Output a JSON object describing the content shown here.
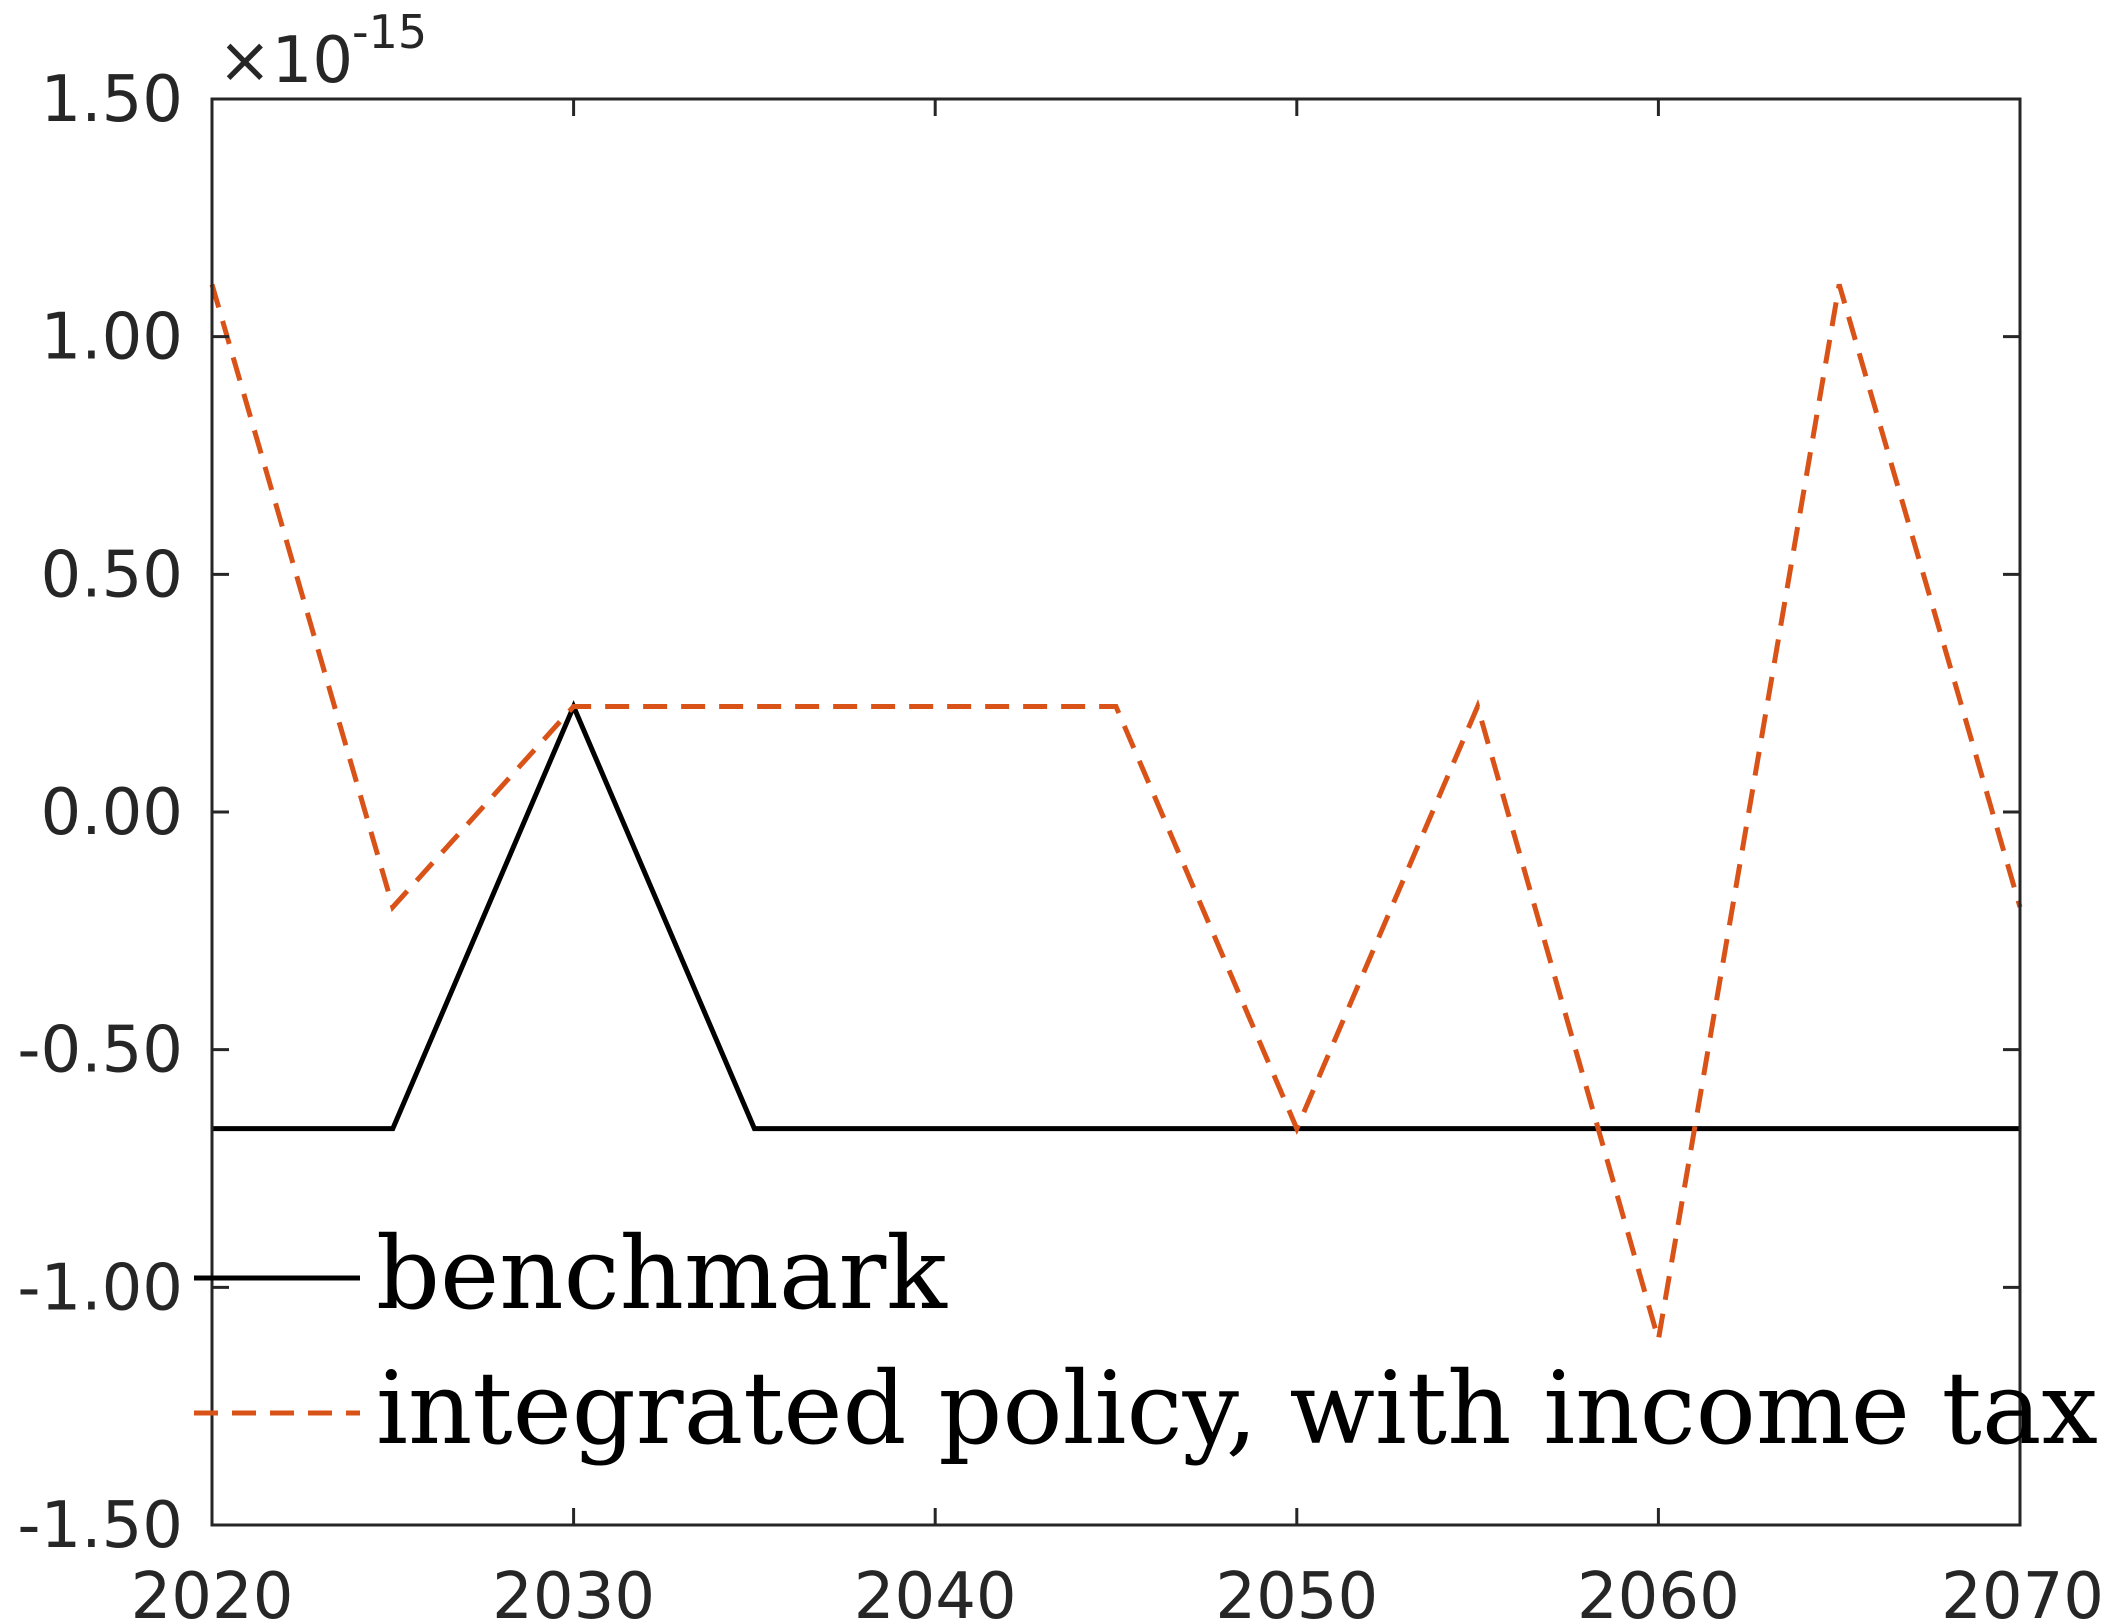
{
  "chart_data": {
    "type": "line",
    "title": "",
    "xlabel": "",
    "ylabel": "",
    "x": [
      2020,
      2025,
      2030,
      2035,
      2040,
      2045,
      2050,
      2055,
      2060,
      2065,
      2070
    ],
    "xlim": [
      2020,
      2070
    ],
    "ylim": [
      -1.5,
      1.5
    ],
    "y_scale_label": {
      "base": "×10",
      "exponent": "-15"
    },
    "x_ticks": [
      2020,
      2030,
      2040,
      2050,
      2060,
      2070
    ],
    "x_tick_labels": [
      "2020",
      "2030",
      "2040",
      "2050",
      "2060",
      "2070"
    ],
    "y_ticks": [
      1.5,
      1.0,
      0.5,
      0.0,
      -0.5,
      -1.0,
      -1.5
    ],
    "y_tick_labels": [
      "1.50",
      "1.00",
      "0.50",
      "0.00",
      "-0.50",
      "-1.00",
      "-1.50"
    ],
    "grid": false,
    "legend_position": "bottom-left",
    "series": [
      {
        "name": "benchmark",
        "color": "#000000",
        "style": "solid",
        "values": [
          -0.666,
          -0.666,
          0.222,
          -0.666,
          -0.666,
          -0.666,
          -0.666,
          -0.666,
          -0.666,
          -0.666,
          -0.666
        ]
      },
      {
        "name": "integrated policy, with income tax",
        "color": "#D95319",
        "style": "dashed",
        "values": [
          1.11,
          -0.2,
          0.222,
          0.222,
          0.222,
          0.222,
          -0.666,
          0.222,
          -1.11,
          1.11,
          -0.2
        ]
      }
    ]
  }
}
